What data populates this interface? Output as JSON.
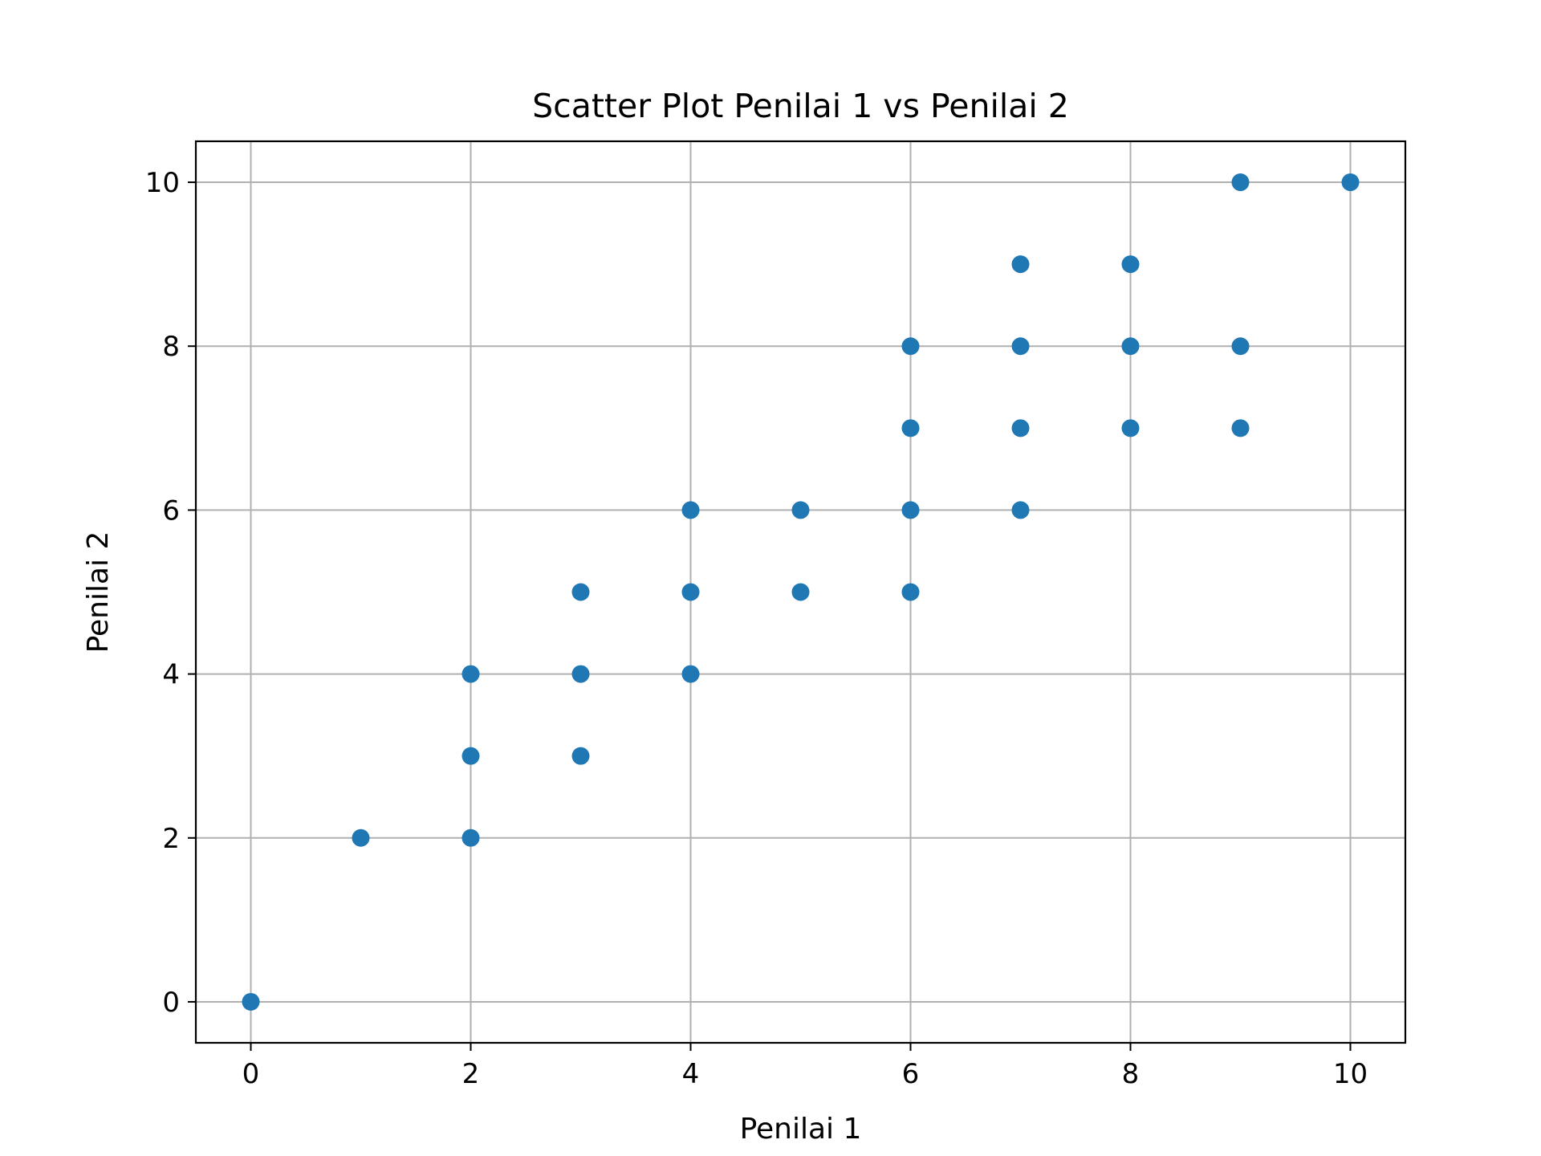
{
  "chart_data": {
    "type": "scatter",
    "title": "Scatter Plot Penilai 1 vs Penilai 2",
    "xlabel": "Penilai 1",
    "ylabel": "Penilai 2",
    "xlim": [
      -0.5,
      10.5
    ],
    "ylim": [
      -0.5,
      10.5
    ],
    "xticks": [
      0,
      2,
      4,
      6,
      8,
      10
    ],
    "yticks": [
      0,
      2,
      4,
      6,
      8,
      10
    ],
    "grid": true,
    "color": "#1f77b4",
    "points": [
      {
        "x": 0,
        "y": 0
      },
      {
        "x": 1,
        "y": 2
      },
      {
        "x": 2,
        "y": 2
      },
      {
        "x": 2,
        "y": 3
      },
      {
        "x": 2,
        "y": 4
      },
      {
        "x": 3,
        "y": 3
      },
      {
        "x": 3,
        "y": 4
      },
      {
        "x": 3,
        "y": 5
      },
      {
        "x": 4,
        "y": 4
      },
      {
        "x": 4,
        "y": 5
      },
      {
        "x": 4,
        "y": 6
      },
      {
        "x": 5,
        "y": 5
      },
      {
        "x": 5,
        "y": 6
      },
      {
        "x": 6,
        "y": 5
      },
      {
        "x": 6,
        "y": 6
      },
      {
        "x": 6,
        "y": 7
      },
      {
        "x": 6,
        "y": 8
      },
      {
        "x": 7,
        "y": 6
      },
      {
        "x": 7,
        "y": 7
      },
      {
        "x": 7,
        "y": 8
      },
      {
        "x": 7,
        "y": 9
      },
      {
        "x": 8,
        "y": 7
      },
      {
        "x": 8,
        "y": 8
      },
      {
        "x": 8,
        "y": 9
      },
      {
        "x": 9,
        "y": 7
      },
      {
        "x": 9,
        "y": 8
      },
      {
        "x": 9,
        "y": 10
      },
      {
        "x": 10,
        "y": 10
      }
    ]
  }
}
